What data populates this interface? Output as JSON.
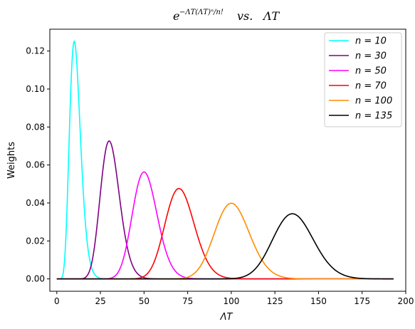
{
  "chart_data": {
    "type": "line",
    "title": {
      "base": "e",
      "superscript": "−ΛT(ΛT)ⁿ/n!",
      "vs": "vs.",
      "rhs": "ΛT"
    },
    "xlabel": "ΛT",
    "ylabel": "Weights",
    "xlim": [
      -4,
      200
    ],
    "ylim": [
      -0.0065,
      0.1315
    ],
    "xticks": [
      0,
      25,
      50,
      75,
      100,
      125,
      150,
      175,
      200
    ],
    "yticks": [
      0.0,
      0.02,
      0.04,
      0.06,
      0.08,
      0.1,
      0.12
    ],
    "ytick_labels": [
      "0.00",
      "0.02",
      "0.04",
      "0.06",
      "0.08",
      "0.10",
      "0.12"
    ],
    "x_range": [
      0,
      193
    ],
    "grid": false,
    "legend_position": "top-right",
    "series": [
      {
        "name": "n = 10",
        "n": 10,
        "color": "#00ffff"
      },
      {
        "name": "n = 30",
        "n": 30,
        "color": "#800080"
      },
      {
        "name": "n = 50",
        "n": 50,
        "color": "#ff00ff"
      },
      {
        "name": "n = 70",
        "n": 70,
        "color": "#ff0000"
      },
      {
        "name": "n = 100",
        "n": 100,
        "color": "#ff8c00"
      },
      {
        "name": "n = 135",
        "n": 135,
        "color": "#000000"
      }
    ]
  }
}
